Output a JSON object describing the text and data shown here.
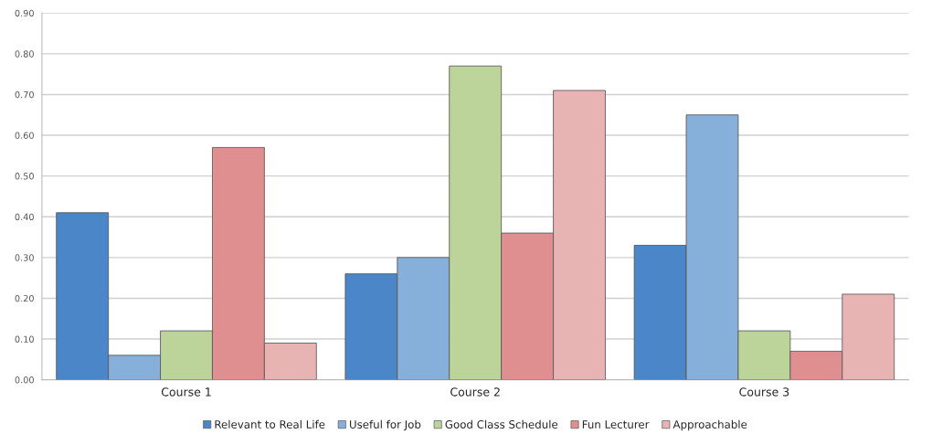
{
  "chart_data": {
    "type": "bar",
    "categories": [
      "Course 1",
      "Course 2",
      "Course 3"
    ],
    "series": [
      {
        "name": "Relevant to Real Life",
        "color": "#4a86c8",
        "values": [
          0.41,
          0.26,
          0.33
        ]
      },
      {
        "name": "Useful for Job",
        "color": "#86afda",
        "values": [
          0.06,
          0.3,
          0.65
        ]
      },
      {
        "name": "Good Class Schedule",
        "color": "#bcd39a",
        "values": [
          0.12,
          0.77,
          0.12
        ]
      },
      {
        "name": "Fun Lecturer",
        "color": "#df8f8f",
        "values": [
          0.57,
          0.36,
          0.07
        ]
      },
      {
        "name": "Approachable",
        "color": "#e8b3b3",
        "values": [
          0.09,
          0.71,
          0.21
        ]
      }
    ],
    "ylim": [
      0,
      0.9
    ],
    "yticks": [
      {
        "value": 0,
        "label": "0.00"
      },
      {
        "value": 0.1,
        "label": "0.10"
      },
      {
        "value": 0.2,
        "label": "0.20"
      },
      {
        "value": 0.3,
        "label": "0.30"
      },
      {
        "value": 0.4,
        "label": "0.40"
      },
      {
        "value": 0.5,
        "label": "0.50"
      },
      {
        "value": 0.6,
        "label": "0.60"
      },
      {
        "value": 0.7,
        "label": "0.70"
      },
      {
        "value": 0.8,
        "label": "0.80"
      },
      {
        "value": 0.9,
        "label": "0.90"
      }
    ],
    "grid": "y",
    "legend": "bottom"
  }
}
